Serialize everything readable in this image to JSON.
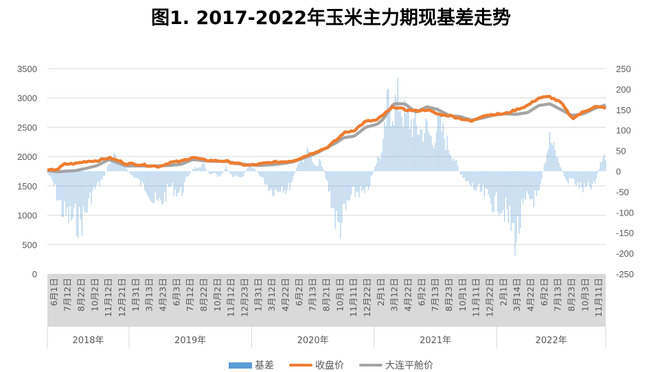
{
  "title": "图1. 2017-2022年玉米主力期现基差走势",
  "legend": [
    {
      "label": "基差",
      "color": "#5B9BD5",
      "type": "bar"
    },
    {
      "label": "收盘价",
      "color": "#ED7D31",
      "type": "line"
    },
    {
      "label": "大连平舱价",
      "color": "#A5A5A5",
      "type": "line"
    }
  ],
  "chart_data": {
    "type": "bar+line",
    "title": "图1. 2017-2022年玉米主力期现基差走势",
    "xlabel": "",
    "ylabel_left": "",
    "ylabel_right": "",
    "left_axis": {
      "min": 0,
      "max": 3500,
      "ticks": [
        0,
        500,
        1000,
        1500,
        2000,
        2500,
        3000,
        3500
      ]
    },
    "right_axis": {
      "min": -250,
      "max": 250,
      "ticks": [
        -250,
        -200,
        -150,
        -100,
        -50,
        0,
        50,
        100,
        150,
        200,
        250
      ]
    },
    "grid": true,
    "legend_position": "bottom",
    "x_tick_labels": [
      "6月1日",
      "7月12日",
      "8月22日",
      "10月2日",
      "11月12日",
      "12月21日",
      "1月31日",
      "3月13日",
      "4月23日",
      "6月3日",
      "7月12日",
      "8月22日",
      "10月2日",
      "11月12日",
      "12月23日",
      "1月31日",
      "3月12日",
      "4月22日",
      "6月2日",
      "7月13日",
      "8月21日",
      "10月1日",
      "11月11日",
      "12月22日",
      "2月1日",
      "3月12日",
      "4月22日",
      "6月2日",
      "7月13日",
      "8月23日",
      "10月1日",
      "11月11日",
      "12月22日",
      "2月1日",
      "3月14日",
      "4月22日",
      "6月2日",
      "7月13日",
      "8月23日",
      "10月3日",
      "11月11日"
    ],
    "year_groups": [
      {
        "label": "2018年",
        "start": 0,
        "end": 5
      },
      {
        "label": "2019年",
        "start": 6,
        "end": 14
      },
      {
        "label": "2020年",
        "start": 15,
        "end": 23
      },
      {
        "label": "2021年",
        "start": 24,
        "end": 32
      },
      {
        "label": "2022年",
        "start": 33,
        "end": 40
      }
    ],
    "series": [
      {
        "name": "收盘价",
        "axis": "left",
        "type": "line",
        "color": "#ED7D31",
        "x": [
          0,
          0.02,
          0.03,
          0.05,
          0.07,
          0.09,
          0.11,
          0.13,
          0.14,
          0.16,
          0.18,
          0.2,
          0.22,
          0.24,
          0.26,
          0.28,
          0.3,
          0.32,
          0.34,
          0.36,
          0.38,
          0.4,
          0.42,
          0.44,
          0.46,
          0.48,
          0.5,
          0.52,
          0.53,
          0.55,
          0.57,
          0.59,
          0.6,
          0.62,
          0.64,
          0.66,
          0.68,
          0.7,
          0.72,
          0.74,
          0.76,
          0.78,
          0.8,
          0.82,
          0.84,
          0.86,
          0.88,
          0.9,
          0.92,
          0.94,
          0.96,
          0.98,
          1.0
        ],
        "values": [
          1760,
          1790,
          1870,
          1880,
          1920,
          1930,
          1980,
          1920,
          1880,
          1870,
          1850,
          1830,
          1900,
          1920,
          1990,
          1940,
          1930,
          1920,
          1880,
          1850,
          1870,
          1900,
          1910,
          1930,
          2000,
          2080,
          2150,
          2300,
          2400,
          2450,
          2600,
          2620,
          2700,
          2850,
          2800,
          2780,
          2800,
          2720,
          2700,
          2650,
          2600,
          2700,
          2720,
          2730,
          2800,
          2870,
          3000,
          3020,
          2920,
          2650,
          2760,
          2850,
          2830
        ]
      },
      {
        "name": "大连平舱价",
        "axis": "left",
        "type": "line",
        "color": "#A5A5A5",
        "x": [
          0,
          0.02,
          0.03,
          0.05,
          0.07,
          0.09,
          0.11,
          0.13,
          0.14,
          0.16,
          0.18,
          0.2,
          0.22,
          0.24,
          0.26,
          0.28,
          0.3,
          0.32,
          0.34,
          0.36,
          0.38,
          0.4,
          0.42,
          0.44,
          0.46,
          0.48,
          0.5,
          0.52,
          0.53,
          0.55,
          0.57,
          0.59,
          0.6,
          0.62,
          0.64,
          0.66,
          0.68,
          0.7,
          0.72,
          0.74,
          0.76,
          0.78,
          0.8,
          0.82,
          0.84,
          0.86,
          0.88,
          0.9,
          0.92,
          0.94,
          0.96,
          0.98,
          1.0
        ],
        "values": [
          1760,
          1740,
          1750,
          1760,
          1800,
          1850,
          1950,
          1880,
          1840,
          1840,
          1840,
          1840,
          1850,
          1870,
          1950,
          1930,
          1920,
          1920,
          1880,
          1860,
          1850,
          1860,
          1880,
          1910,
          1980,
          2050,
          2150,
          2250,
          2320,
          2350,
          2500,
          2550,
          2620,
          2900,
          2900,
          2760,
          2850,
          2800,
          2700,
          2680,
          2620,
          2660,
          2710,
          2730,
          2720,
          2750,
          2870,
          2900,
          2800,
          2700,
          2730,
          2820,
          2880
        ]
      },
      {
        "name": "基差",
        "axis": "right",
        "type": "bar",
        "color": "#5B9BD5",
        "x": [
          0,
          0.01,
          0.02,
          0.03,
          0.04,
          0.05,
          0.06,
          0.07,
          0.08,
          0.09,
          0.1,
          0.11,
          0.12,
          0.13,
          0.14,
          0.15,
          0.16,
          0.17,
          0.18,
          0.19,
          0.2,
          0.21,
          0.22,
          0.23,
          0.24,
          0.25,
          0.26,
          0.27,
          0.28,
          0.29,
          0.3,
          0.31,
          0.32,
          0.33,
          0.34,
          0.35,
          0.36,
          0.37,
          0.38,
          0.39,
          0.4,
          0.41,
          0.42,
          0.43,
          0.44,
          0.45,
          0.46,
          0.47,
          0.48,
          0.49,
          0.5,
          0.51,
          0.52,
          0.53,
          0.54,
          0.55,
          0.56,
          0.57,
          0.58,
          0.59,
          0.6,
          0.61,
          0.62,
          0.63,
          0.64,
          0.65,
          0.66,
          0.67,
          0.68,
          0.69,
          0.7,
          0.71,
          0.72,
          0.73,
          0.74,
          0.75,
          0.76,
          0.77,
          0.78,
          0.79,
          0.8,
          0.81,
          0.82,
          0.83,
          0.84,
          0.85,
          0.86,
          0.87,
          0.88,
          0.89,
          0.9,
          0.91,
          0.92,
          0.93,
          0.94,
          0.95,
          0.96,
          0.97,
          0.98,
          0.99,
          1.0
        ],
        "values": [
          -5,
          -30,
          -80,
          -120,
          -130,
          -135,
          -140,
          -110,
          -60,
          -40,
          -20,
          20,
          45,
          30,
          10,
          -10,
          -20,
          -40,
          -50,
          -85,
          -95,
          -70,
          -40,
          -55,
          -60,
          -20,
          5,
          15,
          20,
          -10,
          -5,
          -20,
          15,
          -15,
          -10,
          -20,
          20,
          10,
          -10,
          -30,
          -50,
          -55,
          -40,
          -55,
          -20,
          25,
          40,
          55,
          15,
          30,
          -25,
          -90,
          -160,
          -130,
          -85,
          -60,
          -55,
          -70,
          -20,
          30,
          50,
          190,
          175,
          200,
          150,
          140,
          120,
          110,
          120,
          80,
          140,
          100,
          60,
          35,
          -10,
          -30,
          -40,
          -55,
          -60,
          -75,
          -90,
          -90,
          -110,
          -150,
          -185,
          -120,
          -80,
          -75,
          -80,
          20,
          90,
          50,
          10,
          -30,
          -20,
          -40,
          -50,
          -45,
          -40,
          20,
          45
        ]
      }
    ]
  }
}
